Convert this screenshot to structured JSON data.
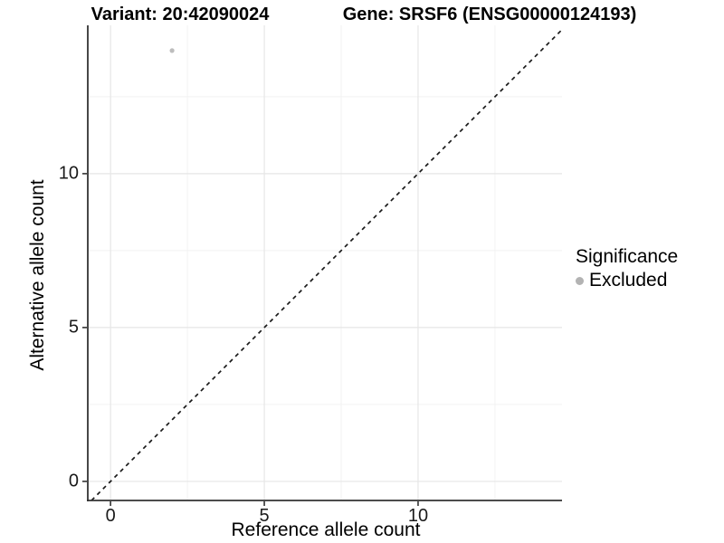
{
  "titles": {
    "left": "Variant: 20:42090024",
    "right": "Gene: SRSF6 (ENSG00000124193)"
  },
  "chart_data": {
    "type": "scatter",
    "title_left": "Variant: 20:42090024",
    "title_right": "Gene: SRSF6 (ENSG00000124193)",
    "xlabel": "Reference allele count",
    "ylabel": "Alternative allele count",
    "xlim": [
      -0.74,
      14.68
    ],
    "ylim": [
      -0.62,
      14.82
    ],
    "x_ticks": [
      0,
      5,
      10
    ],
    "y_ticks": [
      0,
      5,
      10
    ],
    "x_minor_ticks": [
      2.5,
      7.5,
      12.5
    ],
    "y_minor_ticks": [
      2.5,
      7.5,
      12.5
    ],
    "grid": "major-and-minor",
    "points": [
      {
        "x": 2,
        "y": 14,
        "series": "Excluded"
      }
    ],
    "reference_line": {
      "type": "identity",
      "style": "dashed",
      "color": "#1a1a1a"
    },
    "legend": {
      "position": "right",
      "title": "Significance",
      "entries": [
        {
          "label": "Excluded",
          "color": "#b3b3b3"
        }
      ]
    }
  },
  "colors": {
    "background": "#ffffff",
    "axis_line": "#333333",
    "grid_major": "#e6e6e6",
    "grid_minor": "#f2f2f2",
    "point": "#bdbdbd",
    "tick_text": "#1a1a1a"
  }
}
